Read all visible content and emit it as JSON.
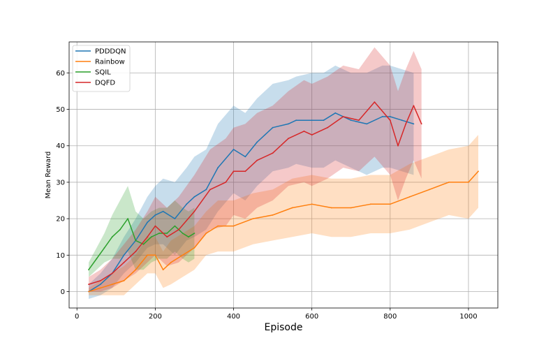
{
  "chart_data": {
    "type": "line",
    "title": "",
    "xlabel": "Episode",
    "ylabel": "Mean Reward",
    "xlim": [
      -20,
      1075
    ],
    "ylim": [
      -4.5,
      68.5
    ],
    "xticks": [
      0,
      200,
      400,
      600,
      800,
      1000
    ],
    "yticks": [
      0,
      10,
      20,
      30,
      40,
      50,
      60
    ],
    "grid": true,
    "legend_position": "top-left",
    "series": [
      {
        "name": "PDDDQN",
        "color": "#1f77b4",
        "x": [
          30,
          60,
          90,
          120,
          150,
          180,
          200,
          220,
          250,
          280,
          300,
          330,
          360,
          400,
          430,
          460,
          500,
          540,
          560,
          600,
          630,
          660,
          700,
          740,
          780,
          800,
          830,
          860
        ],
        "y": [
          0,
          2,
          5,
          10,
          14,
          19,
          21,
          22,
          20,
          24,
          26,
          28,
          34,
          39,
          37,
          41,
          45,
          46,
          47,
          47,
          47,
          49,
          47,
          46,
          48,
          48,
          47,
          46
        ],
        "band": [
          2,
          3,
          4,
          5,
          6,
          7,
          8,
          9,
          10,
          10,
          11,
          11,
          12,
          12,
          12,
          12,
          12,
          12,
          12,
          13,
          13,
          13,
          13,
          14,
          14,
          14,
          14,
          14
        ]
      },
      {
        "name": "Rainbow",
        "color": "#ff7f0e",
        "x": [
          30,
          60,
          90,
          120,
          150,
          180,
          200,
          220,
          240,
          270,
          300,
          330,
          360,
          400,
          450,
          500,
          550,
          600,
          650,
          700,
          750,
          800,
          850,
          900,
          950,
          1000,
          1025
        ],
        "y": [
          0,
          1,
          2,
          3,
          6,
          10,
          10,
          6,
          8,
          10,
          12,
          16,
          18,
          18,
          20,
          21,
          23,
          24,
          23,
          23,
          24,
          24,
          26,
          28,
          30,
          30,
          33
        ],
        "band": [
          1,
          2,
          3,
          4,
          4,
          5,
          5,
          5,
          6,
          6,
          6,
          6,
          7,
          7,
          7,
          7,
          8,
          8,
          8,
          8,
          8,
          8,
          9,
          9,
          9,
          10,
          10
        ]
      },
      {
        "name": "SQIL",
        "color": "#2ca02c",
        "x": [
          30,
          50,
          70,
          90,
          110,
          130,
          150,
          170,
          190,
          210,
          230,
          250,
          270,
          285,
          300
        ],
        "y": [
          6,
          9,
          12,
          15,
          17,
          20,
          14,
          13,
          15,
          16,
          16,
          18,
          16,
          15,
          16
        ],
        "band": [
          2,
          3,
          4,
          6,
          8,
          9,
          8,
          7,
          7,
          7,
          7,
          7,
          7,
          7,
          7
        ]
      },
      {
        "name": "DQFD",
        "color": "#d62728",
        "x": [
          30,
          60,
          90,
          120,
          150,
          180,
          200,
          230,
          260,
          300,
          340,
          380,
          400,
          430,
          460,
          500,
          540,
          580,
          600,
          640,
          680,
          720,
          760,
          800,
          820,
          840,
          860,
          880
        ],
        "y": [
          2,
          3,
          5,
          8,
          11,
          15,
          18,
          15,
          17,
          22,
          28,
          30,
          33,
          33,
          36,
          38,
          42,
          44,
          43,
          45,
          48,
          47,
          52,
          47,
          40,
          46,
          51,
          46
        ],
        "band": [
          2,
          3,
          4,
          5,
          6,
          7,
          8,
          8,
          9,
          10,
          11,
          12,
          12,
          13,
          13,
          13,
          13,
          14,
          14,
          14,
          14,
          14,
          15,
          15,
          15,
          15,
          15,
          15
        ]
      }
    ]
  }
}
